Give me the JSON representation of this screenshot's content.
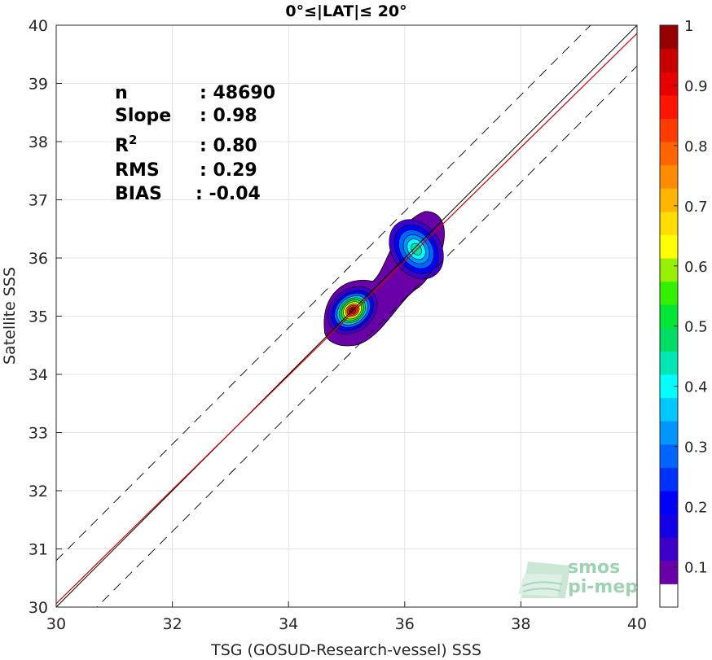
{
  "chart_data": {
    "type": "scatter",
    "subtype": "density-contour",
    "title": "0°≤|LAT|≤ 20°",
    "xlabel": "TSG (GOSUD-Research-vessel) SSS",
    "ylabel": "Satellite SSS",
    "xlim": [
      30,
      40
    ],
    "ylim": [
      30,
      40
    ],
    "xticks": [
      30,
      32,
      34,
      36,
      38,
      40
    ],
    "yticks": [
      30,
      31,
      32,
      33,
      34,
      35,
      36,
      37,
      38,
      39,
      40
    ],
    "grid": true,
    "stats": [
      {
        "label": "n",
        "value": ": 48690"
      },
      {
        "label": "Slope",
        "value": ": 0.98"
      },
      {
        "label": "R",
        "sup": "2",
        "value": ": 0.80"
      },
      {
        "label": "RMS",
        "value": ": 0.29"
      },
      {
        "label": "BIAS",
        "value": ": -0.04"
      }
    ],
    "lines": {
      "identity": {
        "slope": 1.0,
        "intercept": 0.0,
        "color": "#000000"
      },
      "fit": {
        "slope": 0.98,
        "intercept": 0.66,
        "color": "#cc0000"
      },
      "bounds": [
        {
          "slope": 1.0,
          "intercept": 0.8,
          "style": "dashed"
        },
        {
          "slope": 1.0,
          "intercept": -0.7,
          "style": "dashed"
        }
      ]
    },
    "density_peaks": [
      {
        "x": 35.1,
        "y": 35.1,
        "peak": 1.0
      },
      {
        "x": 36.2,
        "y": 36.15,
        "peak": 0.45
      }
    ],
    "colorbar": {
      "ticks": [
        0.1,
        0.2,
        0.3,
        0.4,
        0.5,
        0.6,
        0.7,
        0.8,
        0.9,
        1
      ],
      "tick_labels": [
        "0.1",
        "0.2",
        "0.3",
        "0.4",
        "0.5",
        "0.6",
        "0.7",
        "0.8",
        "0.9",
        "1"
      ],
      "colors": [
        "#ffffff",
        "#6a00a8",
        "#3c00c8",
        "#1400e6",
        "#0000ff",
        "#0032ff",
        "#0064ff",
        "#0096ff",
        "#00c8ff",
        "#00ffff",
        "#00e6b4",
        "#00dc64",
        "#00e632",
        "#32f000",
        "#96f000",
        "#ffff00",
        "#ffdc00",
        "#ffb400",
        "#ff8c00",
        "#ff6400",
        "#ff3c00",
        "#ff1400",
        "#e60000",
        "#c80000",
        "#960000"
      ],
      "ylim": [
        0.033,
        1.0
      ]
    }
  },
  "logo": {
    "line1": "smos",
    "line2": "pi-mep"
  }
}
